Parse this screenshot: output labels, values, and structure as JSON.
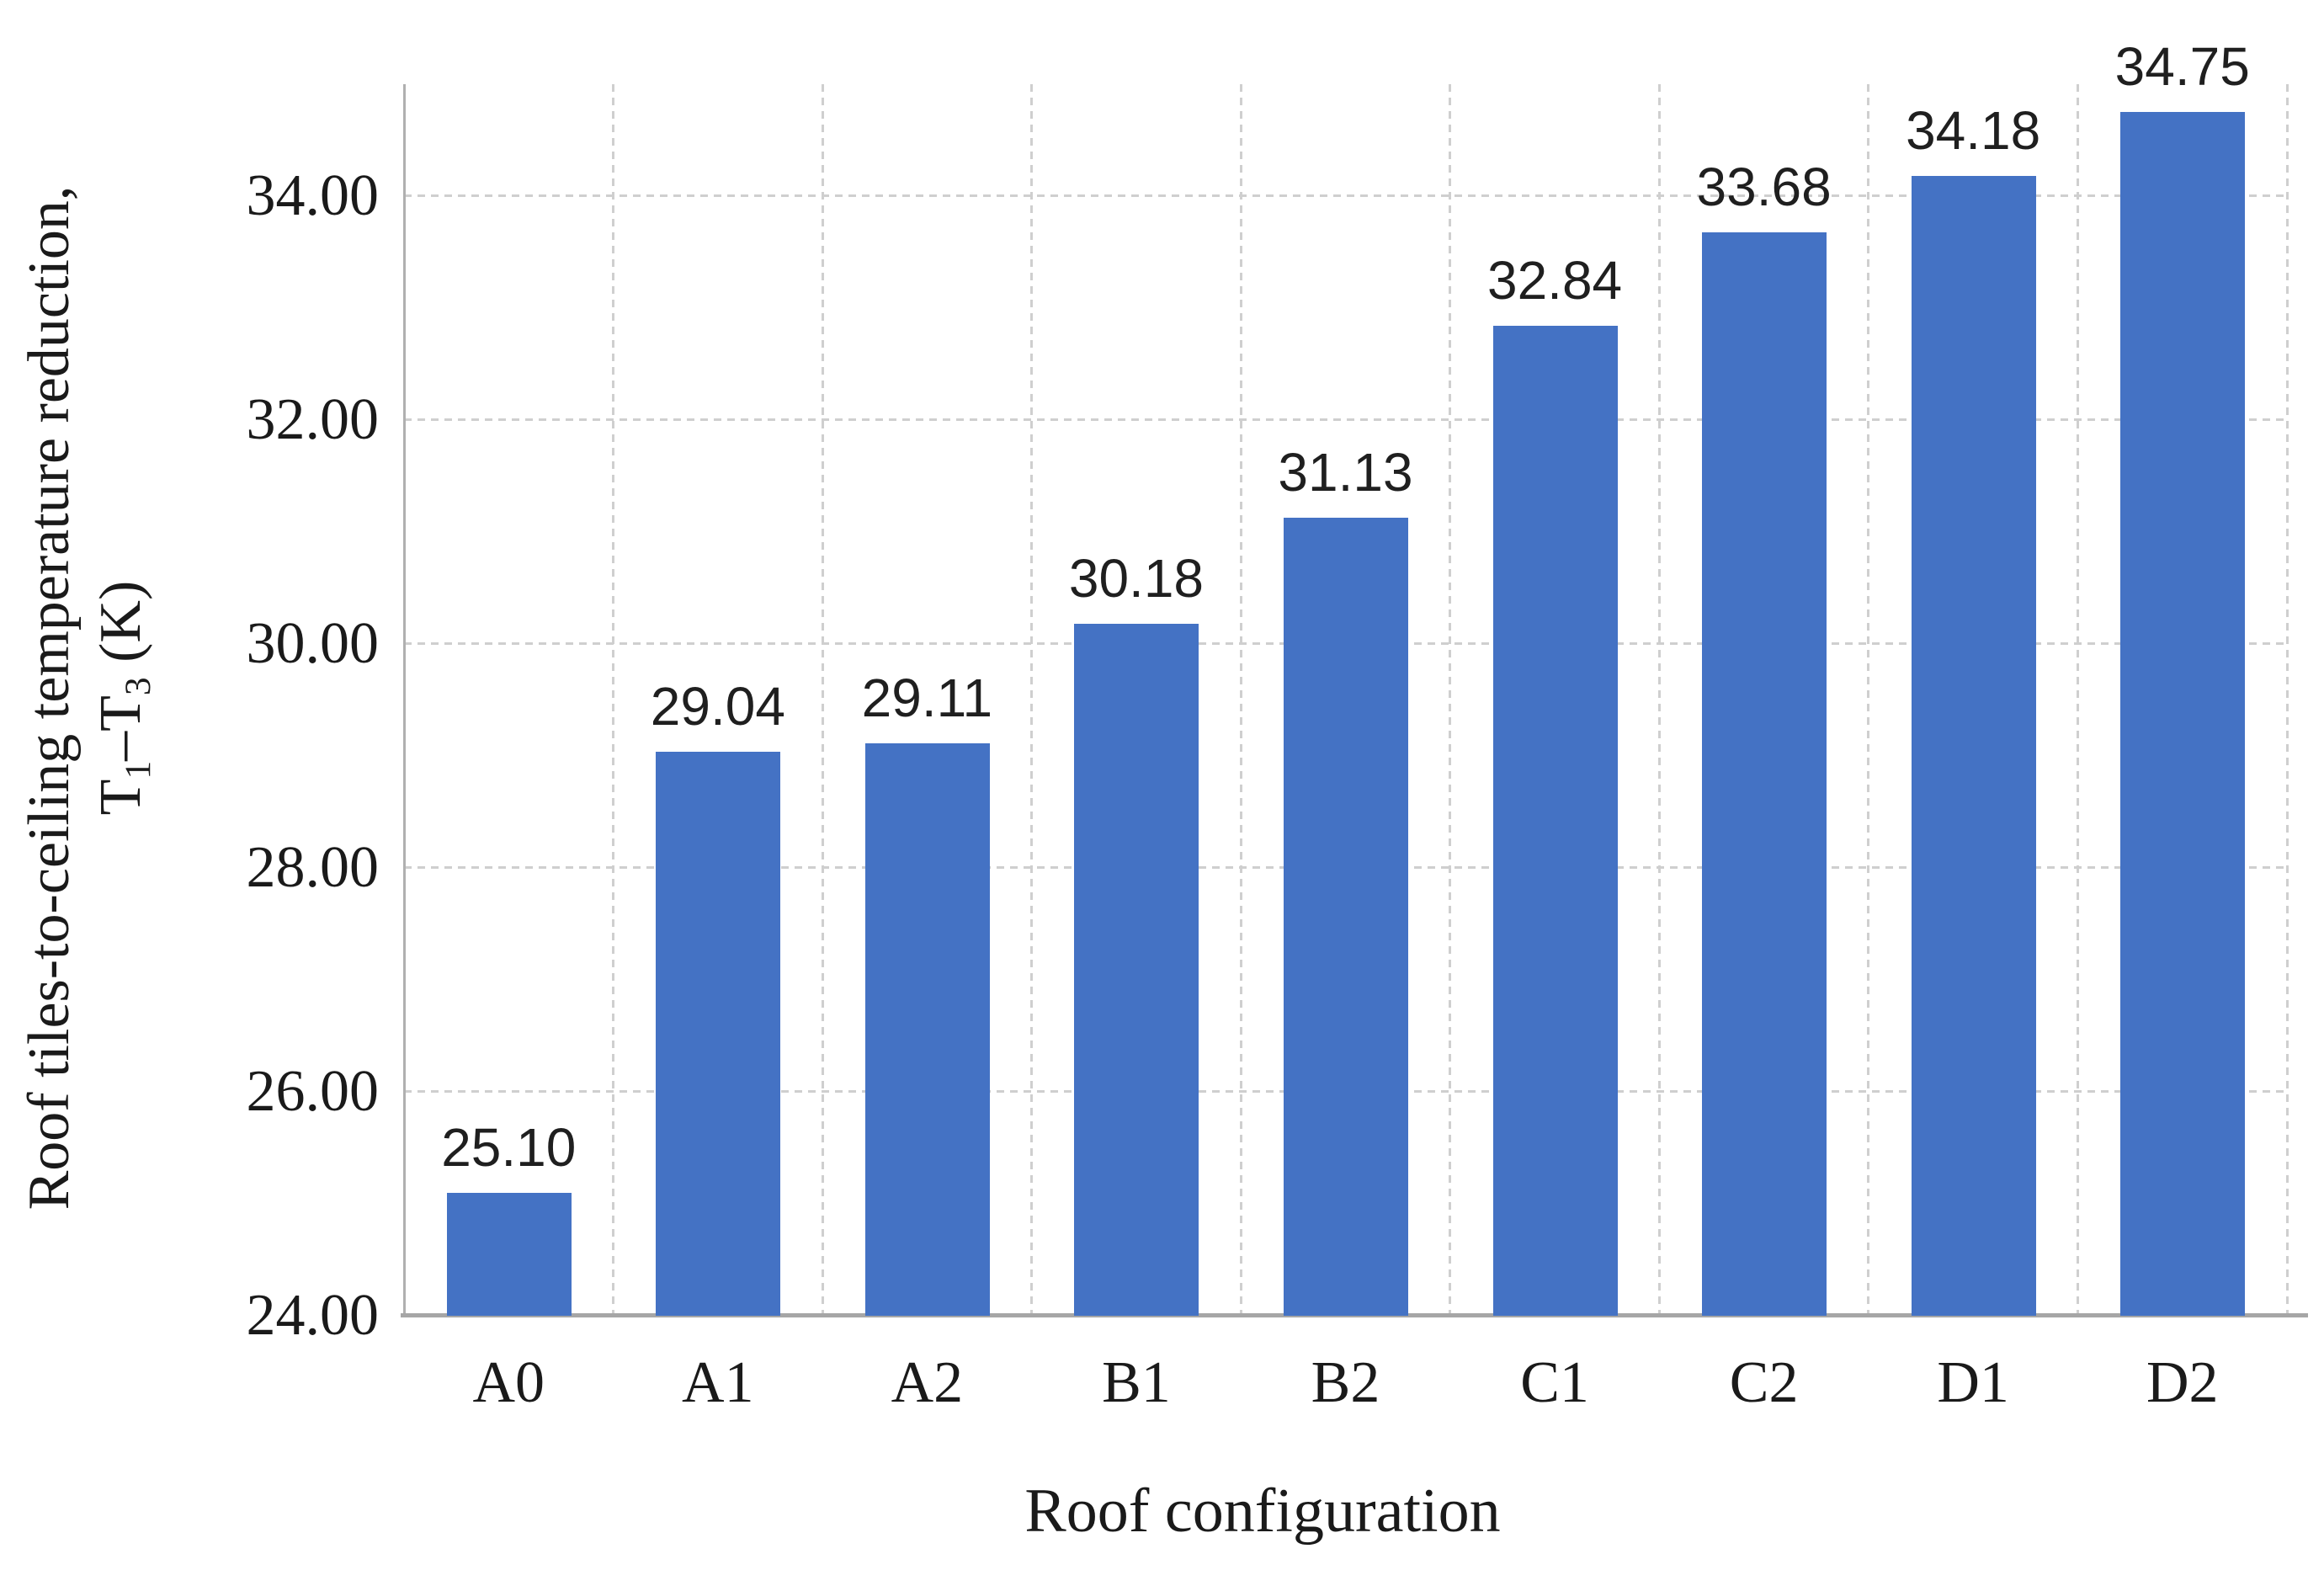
{
  "chart_data": {
    "type": "bar",
    "title": "",
    "categories": [
      "A0",
      "A1",
      "A2",
      "B1",
      "B2",
      "C1",
      "C2",
      "D1",
      "D2"
    ],
    "values": [
      25.1,
      29.04,
      29.11,
      30.18,
      31.13,
      32.84,
      33.68,
      34.18,
      34.75
    ],
    "value_labels": [
      "25.10",
      "29.04",
      "29.11",
      "30.18",
      "31.13",
      "32.84",
      "33.68",
      "34.18",
      "34.75"
    ],
    "xlabel": "Roof configuration",
    "ylabel_line1": "Roof tiles-to-ceiling temperature reduction,",
    "ylabel_line2_parts": {
      "base1": "T",
      "sub1": "1",
      "mid": "–T",
      "sub2": "3",
      "suffix": " (K)"
    },
    "ylim": [
      24,
      35
    ],
    "ytick_major_unit": 2,
    "yticks": [
      {
        "value": 24,
        "label": "24.00"
      },
      {
        "value": 26,
        "label": "26.00"
      },
      {
        "value": 28,
        "label": "28.00"
      },
      {
        "value": 30,
        "label": "30.00"
      },
      {
        "value": 32,
        "label": "32.00"
      },
      {
        "value": 34,
        "label": "34.00"
      }
    ],
    "grid": {
      "horizontal": true,
      "vertical": true,
      "style": "dashed"
    },
    "legend": "none",
    "colors": {
      "bar": "#4472C4",
      "gridline": "#cfcfcf",
      "x_axis_line": "#a6a6a6",
      "y_axis_line": "#b0b0b0",
      "data_label": "#1f1f1f",
      "tick_label": "#1a1a1a",
      "background": "#ffffff"
    },
    "bar_width_fraction": 0.59
  }
}
